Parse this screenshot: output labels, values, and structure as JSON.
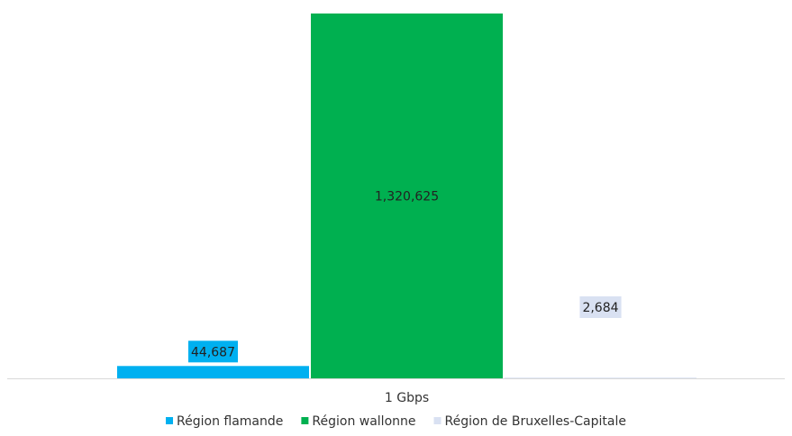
{
  "chart_data": {
    "type": "bar",
    "categories": [
      "1 Gbps"
    ],
    "series": [
      {
        "name": "Région flamande",
        "values": [
          44687
        ],
        "color": "#00b0f0",
        "label": "44,687"
      },
      {
        "name": "Région wallonne",
        "values": [
          1320625
        ],
        "color": "#00b050",
        "label": "1,320,625"
      },
      {
        "name": "Région de Bruxelles-Capitale",
        "values": [
          2684
        ],
        "color": "#d9e1f2",
        "label": "2,684"
      }
    ],
    "title": "",
    "xlabel": "",
    "ylabel": "",
    "ylim": [
      0,
      1320625
    ],
    "grid": false,
    "legend": "bottom",
    "data_labels": true
  }
}
